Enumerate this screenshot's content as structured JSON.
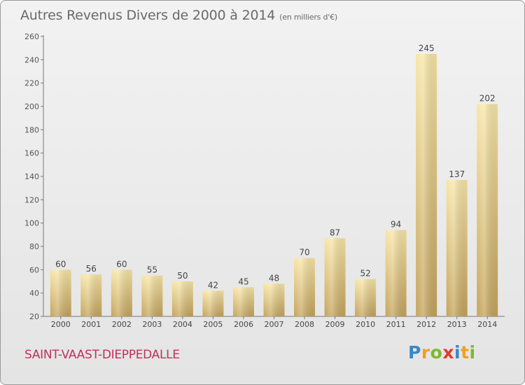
{
  "title": "Autres Revenus Divers de 2000 à 2014",
  "title_unit": "(en milliers d'€)",
  "commune": "SAINT-VAAST-DIEPPEDALLE",
  "logo": {
    "p": "P",
    "r": "r",
    "o": "o",
    "x": "x",
    "i1": "i",
    "t": "t",
    "i2": "i"
  },
  "colors": {
    "bar_light": "#f6e2a0",
    "bar_dark": "#c9aa62",
    "commune": "#c0305a",
    "text": "#555555"
  },
  "chart_data": {
    "type": "bar",
    "title": "Autres Revenus Divers de 2000 à 2014",
    "ylabel": "en milliers d'€",
    "xlabel": "",
    "categories": [
      "2000",
      "2001",
      "2002",
      "2003",
      "2004",
      "2005",
      "2006",
      "2007",
      "2008",
      "2009",
      "2010",
      "2011",
      "2012",
      "2013",
      "2014"
    ],
    "values": [
      60,
      56,
      60,
      55,
      50,
      42,
      45,
      48,
      70,
      87,
      52,
      94,
      245,
      137,
      202
    ],
    "ylim": [
      20,
      260
    ],
    "yticks": [
      20,
      40,
      60,
      80,
      100,
      120,
      140,
      160,
      180,
      200,
      220,
      240,
      260
    ],
    "grid": false,
    "legend": "none"
  }
}
